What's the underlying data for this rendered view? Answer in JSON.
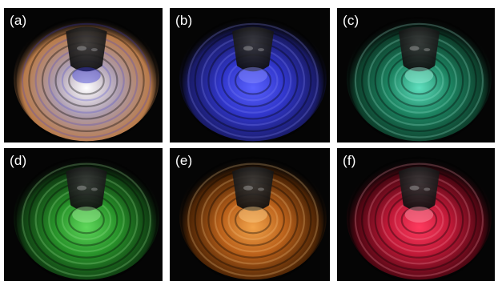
{
  "panels": [
    {
      "label": "(a)",
      "description": "white-light interference rings",
      "colors": {
        "outer": "#d88f55",
        "mid": "#b5a4b8",
        "inner": "#ffffff",
        "accent": "#3a3ad0"
      }
    },
    {
      "label": "(b)",
      "description": "blue illumination",
      "colors": {
        "outer": "#1d1f7a",
        "mid": "#3339d6",
        "inner": "#5a62ff",
        "accent": "#8b90ff"
      }
    },
    {
      "label": "(c)",
      "description": "cyan-green illumination",
      "colors": {
        "outer": "#0f4a33",
        "mid": "#1e8a66",
        "inner": "#5fe0bf",
        "accent": "#9ff2dc"
      }
    },
    {
      "label": "(d)",
      "description": "green illumination",
      "colors": {
        "outer": "#124a15",
        "mid": "#2a9a2c",
        "inner": "#5fd85b",
        "accent": "#a5f09c"
      }
    },
    {
      "label": "(e)",
      "description": "orange illumination",
      "colors": {
        "outer": "#5a2a05",
        "mid": "#c4661c",
        "inner": "#f2a34a",
        "accent": "#ffd08a"
      }
    },
    {
      "label": "(f)",
      "description": "red illumination",
      "colors": {
        "outer": "#5a0614",
        "mid": "#c91a3a",
        "inner": "#ff3a5e",
        "accent": "#ff9aaa"
      }
    }
  ]
}
